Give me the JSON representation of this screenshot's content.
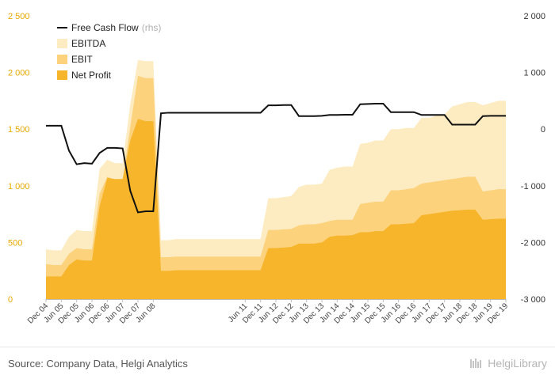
{
  "chart_data": {
    "type": "area",
    "x": [
      "Dec 04",
      "Mar 05",
      "Jun 05",
      "Sep 05",
      "Dec 05",
      "Mar 06",
      "Jun 06",
      "Sep 06",
      "Dec 06",
      "Mar 07",
      "Jun 07",
      "Sep 07",
      "Dec 07",
      "Mar 08",
      "Jun 08",
      "Sep 08",
      "Dec 08",
      "Mar 09",
      "Jun 09",
      "Sep 09",
      "Dec 09",
      "Mar 10",
      "Jun 10",
      "Sep 10",
      "Dec 10",
      "Mar 11",
      "Jun 11",
      "Sep 11",
      "Dec 11",
      "Mar 12",
      "Jun 12",
      "Sep 12",
      "Dec 12",
      "Mar 13",
      "Jun 13",
      "Sep 13",
      "Dec 13",
      "Mar 14",
      "Jun 14",
      "Sep 14",
      "Dec 14",
      "Mar 15",
      "Jun 15",
      "Sep 15",
      "Dec 15",
      "Mar 16",
      "Jun 16",
      "Sep 16",
      "Dec 16",
      "Mar 17",
      "Jun 17",
      "Sep 17",
      "Dec 17",
      "Mar 18",
      "Jun 18",
      "Sep 18",
      "Dec 18",
      "Mar 19",
      "Jun 19",
      "Sep 19",
      "Dec 19"
    ],
    "x_tick_labels": [
      "Dec 04",
      "Jun 05",
      "Dec 05",
      "Jun 06",
      "Dec 06",
      "Jun 07",
      "Dec 07",
      "Jun 08",
      "Jun 11",
      "Dec 11",
      "Jun 12",
      "Dec 12",
      "Jun 13",
      "Dec 13",
      "Jun 14",
      "Dec 14",
      "Jun 15",
      "Dec 15",
      "Jun 16",
      "Dec 16",
      "Jun 17",
      "Dec 17",
      "Jun 18",
      "Dec 18",
      "Jun 19",
      "Dec 19"
    ],
    "x_tick_indices": [
      0,
      2,
      4,
      6,
      8,
      10,
      12,
      14,
      26,
      28,
      30,
      32,
      34,
      36,
      38,
      40,
      42,
      44,
      46,
      48,
      50,
      52,
      54,
      56,
      58,
      60
    ],
    "y_left": {
      "min": 0,
      "max": 2500,
      "ticks": [
        0,
        500,
        1000,
        1500,
        2000,
        2500
      ],
      "tick_labels": [
        "0",
        "500",
        "1 000",
        "1 500",
        "2 000",
        "2 500"
      ]
    },
    "y_right": {
      "min": -3000,
      "max": 2000,
      "ticks": [
        -3000,
        -2000,
        -1000,
        0,
        1000,
        2000
      ],
      "tick_labels": [
        "-3 000",
        "-2 000",
        "-1 000",
        "0",
        "1 000",
        "2 000"
      ]
    },
    "grid": false,
    "legend_position": "top-left",
    "series": [
      {
        "name": "EBITDA",
        "axis": "left",
        "type": "area",
        "color": "#fdebc2",
        "values": [
          440,
          430,
          430,
          550,
          610,
          600,
          600,
          1150,
          1230,
          1200,
          1200,
          1720,
          2110,
          2100,
          2100,
          520,
          520,
          530,
          530,
          530,
          530,
          530,
          530,
          530,
          530,
          530,
          530,
          530,
          530,
          890,
          890,
          900,
          910,
          990,
          1010,
          1010,
          1020,
          1140,
          1160,
          1170,
          1170,
          1370,
          1380,
          1400,
          1400,
          1500,
          1500,
          1510,
          1510,
          1600,
          1600,
          1620,
          1630,
          1700,
          1720,
          1740,
          1740,
          1710,
          1730,
          1750,
          1750
        ]
      },
      {
        "name": "EBIT",
        "axis": "left",
        "type": "area",
        "color": "#fcd27c",
        "values": [
          310,
          300,
          300,
          400,
          450,
          440,
          440,
          930,
          1080,
          1050,
          1050,
          1520,
          1970,
          1950,
          1950,
          370,
          370,
          375,
          375,
          375,
          375,
          375,
          375,
          375,
          375,
          375,
          375,
          375,
          375,
          610,
          610,
          615,
          620,
          650,
          660,
          660,
          670,
          690,
          700,
          700,
          700,
          840,
          850,
          860,
          860,
          960,
          960,
          970,
          980,
          1020,
          1030,
          1040,
          1050,
          1060,
          1070,
          1080,
          1080,
          950,
          960,
          970,
          970
        ]
      },
      {
        "name": "Net Profit",
        "axis": "left",
        "type": "area",
        "color": "#f6b52b",
        "values": [
          200,
          200,
          200,
          300,
          350,
          340,
          340,
          820,
          1070,
          1060,
          1060,
          1400,
          1590,
          1570,
          1570,
          250,
          250,
          255,
          255,
          255,
          255,
          255,
          255,
          255,
          255,
          255,
          255,
          255,
          255,
          450,
          450,
          455,
          460,
          490,
          490,
          490,
          500,
          550,
          560,
          560,
          565,
          590,
          590,
          600,
          600,
          660,
          660,
          665,
          670,
          740,
          750,
          760,
          770,
          780,
          785,
          790,
          790,
          700,
          705,
          710,
          710
        ]
      },
      {
        "name": "Free Cash Flow",
        "note": "(rhs)",
        "axis": "right",
        "type": "line",
        "color": "#111111",
        "values": [
          60,
          60,
          60,
          -380,
          -620,
          -600,
          -610,
          -420,
          -330,
          -330,
          -340,
          -1090,
          -1470,
          -1450,
          -1450,
          280,
          290,
          290,
          290,
          290,
          290,
          290,
          290,
          290,
          290,
          290,
          290,
          290,
          290,
          420,
          420,
          425,
          425,
          230,
          230,
          230,
          235,
          250,
          250,
          255,
          255,
          440,
          445,
          450,
          450,
          300,
          300,
          300,
          300,
          250,
          250,
          250,
          250,
          80,
          80,
          80,
          80,
          230,
          235,
          235,
          235
        ]
      }
    ]
  },
  "footer": {
    "source": "Source: Company Data, Helgi Analytics",
    "brand": "HelgiLibrary"
  }
}
